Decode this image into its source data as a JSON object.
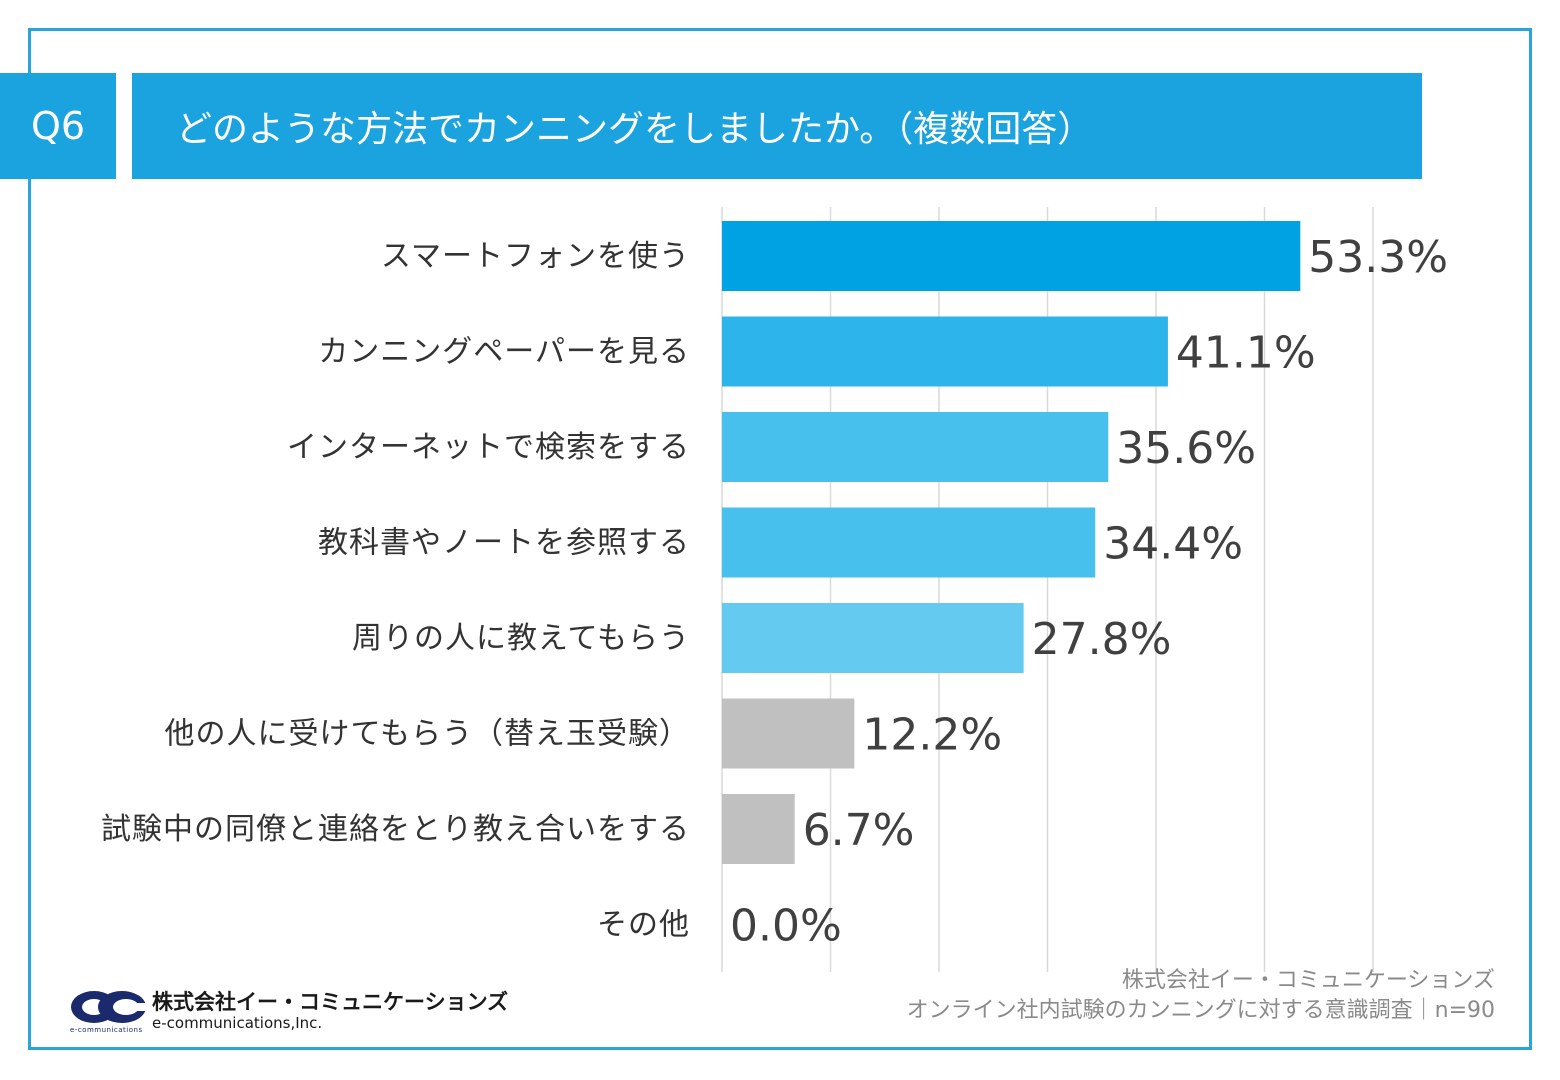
{
  "header": {
    "question_no": "Q6",
    "title": "どのような方法でカンニングをしましたか。（複数回答）"
  },
  "chart_data": {
    "type": "bar",
    "orientation": "horizontal",
    "categories": [
      "スマートフォンを使う",
      "カンニングペーパーを見る",
      "インターネットで検索をする",
      "教科書やノートを参照する",
      "周りの人に教えてもらう",
      "他の人に受けてもらう（替え玉受験）",
      "試験中の同僚と連絡をとり教え合いをする",
      "その他"
    ],
    "values": [
      53.3,
      41.1,
      35.6,
      34.4,
      27.8,
      12.2,
      6.7,
      0.0
    ],
    "value_labels": [
      "53.3%",
      "41.1%",
      "35.6%",
      "34.4%",
      "27.8%",
      "12.2%",
      "6.7%",
      "0.0%"
    ],
    "colors": [
      "#00a2e3",
      "#2db4ea",
      "#47c0ee",
      "#47c0ee",
      "#65caf0",
      "#c0c0c0",
      "#c0c0c0",
      "#c0c0c0"
    ],
    "xlim": [
      0,
      60
    ],
    "grid": true,
    "gridline_step": 10
  },
  "footer": {
    "company": "株式会社イー・コミュニケーションズ",
    "survey": "オンライン社内試験のカンニングに対する意識調査｜n=90"
  },
  "logo": {
    "name_ja": "株式会社イー・コミュニケーションズ",
    "name_en": "e-communications,Inc.",
    "tagline": "e-communications",
    "color": "#1a2a6c"
  }
}
